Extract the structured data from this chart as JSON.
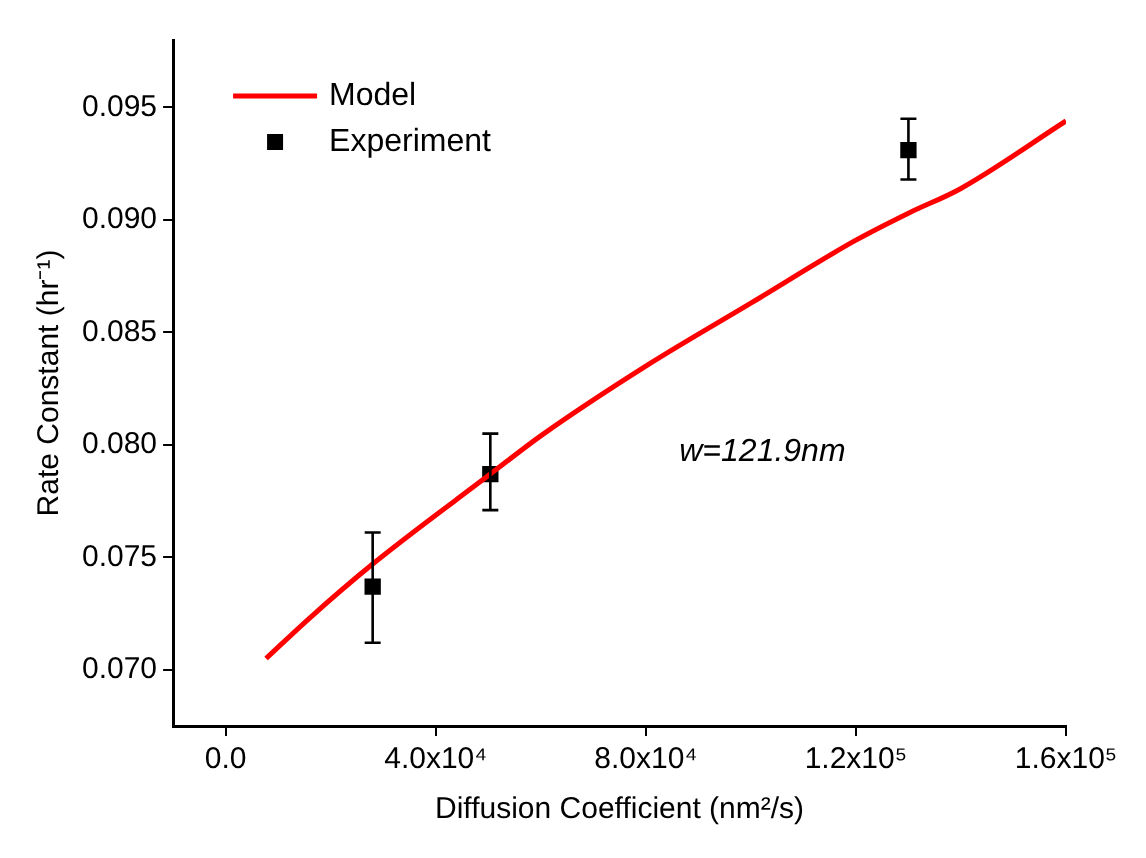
{
  "chart_data": {
    "type": "scatter",
    "xlabel": "Diffusion Coefficient (nm²/s)",
    "ylabel": "Rate Constant (hr⁻¹)",
    "annotations": [
      "w=121.9nm"
    ],
    "xlim": [
      -10000,
      160000
    ],
    "xticks": [
      {
        "value": 0,
        "label": "0.0"
      },
      {
        "value": 40000,
        "label": "4.0x10⁴"
      },
      {
        "value": 80000,
        "label": "8.0x10⁴"
      },
      {
        "value": 120000,
        "label": "1.2x10⁵"
      },
      {
        "value": 160000,
        "label": "1.6x10⁵"
      }
    ],
    "ylim": [
      0.0675,
      0.098
    ],
    "yticks": [
      {
        "value": 0.07,
        "label": "0.070"
      },
      {
        "value": 0.075,
        "label": "0.075"
      },
      {
        "value": 0.08,
        "label": "0.080"
      },
      {
        "value": 0.085,
        "label": "0.085"
      },
      {
        "value": 0.09,
        "label": "0.090"
      },
      {
        "value": 0.095,
        "label": "0.095"
      }
    ],
    "grid": false,
    "legend": "top left",
    "series": [
      {
        "name": "Model",
        "type": "line",
        "color": "#ff0000",
        "marker": "none",
        "line_style": "solid",
        "x": [
          7700,
          16000,
          28000,
          50400,
          60000,
          80000,
          100000,
          120000,
          130000,
          140000,
          160000
        ],
        "values": [
          0.0705,
          0.0723,
          0.0747,
          0.0787,
          0.0804,
          0.0835,
          0.0863,
          0.0891,
          0.0903,
          0.0914,
          0.0944
        ]
      },
      {
        "name": "Experiment",
        "type": "scatter",
        "color": "#000000",
        "marker": "square",
        "x": [
          28000,
          50400,
          130000
        ],
        "values": [
          0.0737,
          0.0787,
          0.0931
        ],
        "errors": [
          [
            0.0712,
            0.0761
          ],
          [
            0.0771,
            0.0805
          ],
          [
            0.0918,
            0.0945
          ]
        ]
      }
    ]
  }
}
